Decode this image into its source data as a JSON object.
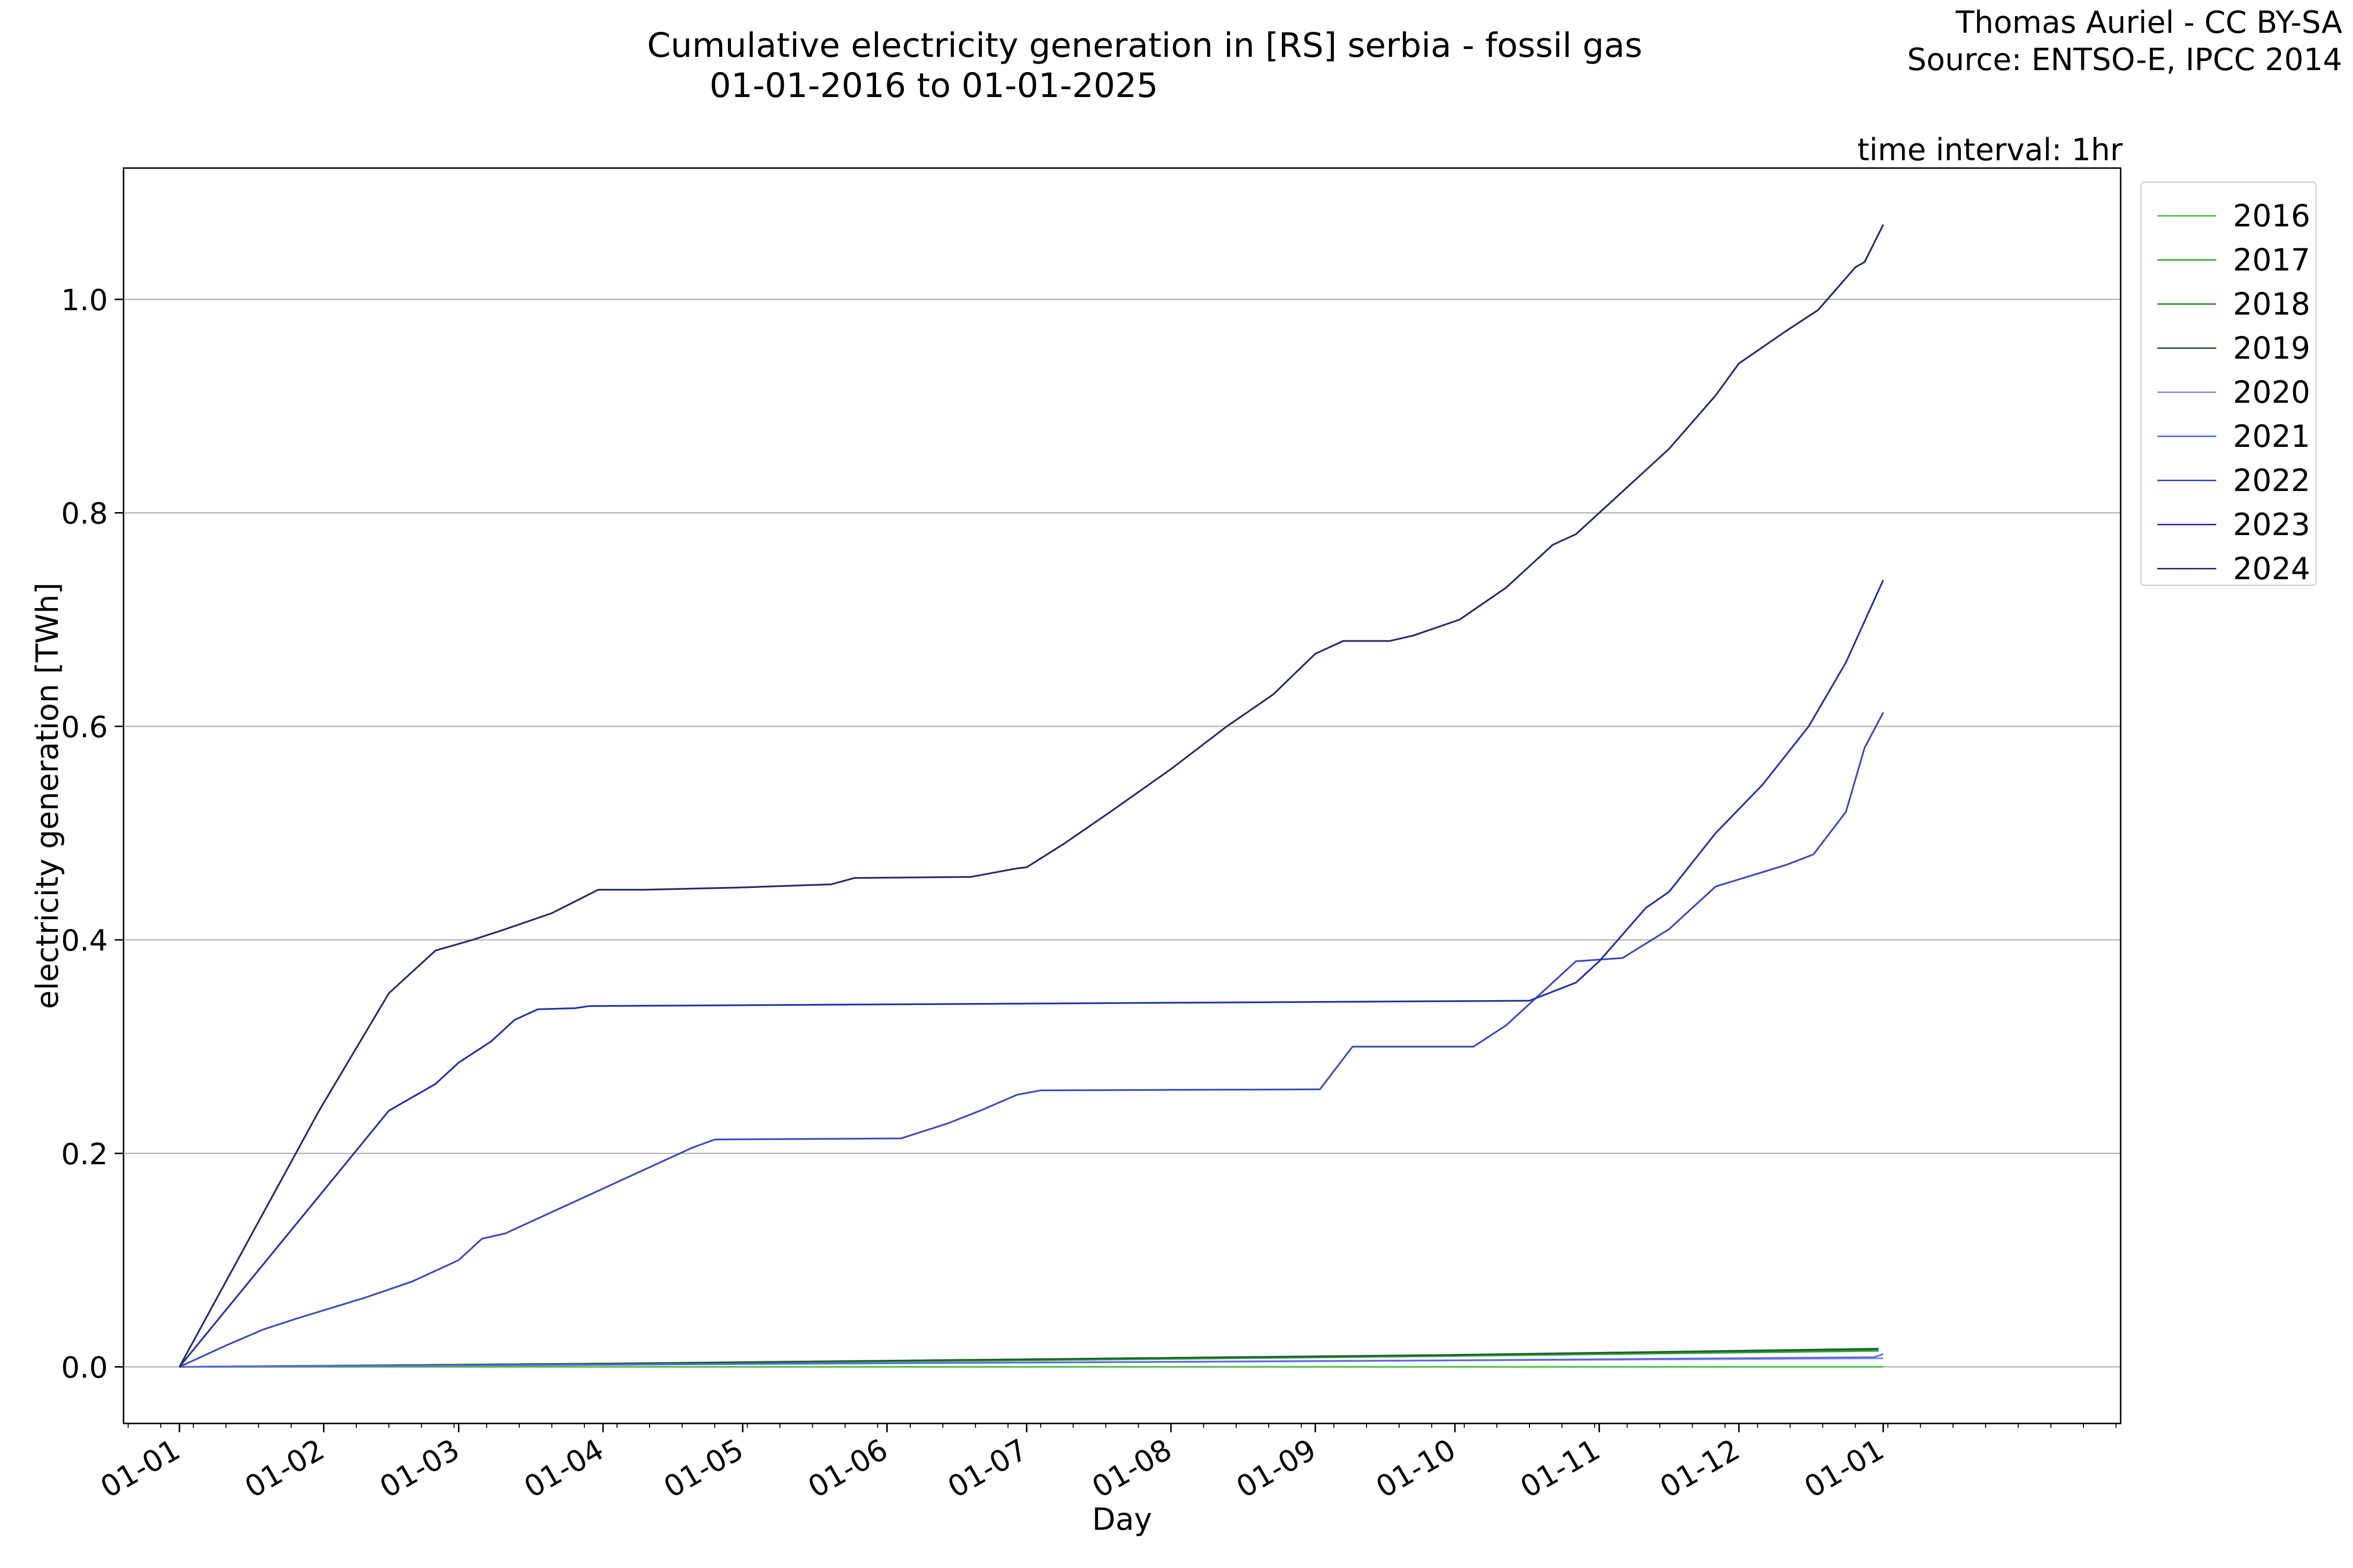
{
  "header": {
    "title_line1": "Cumulative electricity generation in [RS] serbia - fossil gas",
    "title_line2": "01-01-2016 to 01-01-2025",
    "credit_line1": "Thomas Auriel - CC BY-SA",
    "credit_line2": "Source: ENTSO-E, IPCC 2014",
    "interval": "time interval: 1hr"
  },
  "chart_data": {
    "type": "line",
    "title": "Cumulative electricity generation in [RS] serbia - fossil gas",
    "subtitle": "01-01-2016 to 01-01-2025",
    "xlabel": "Day",
    "ylabel": "electricity generation [TWh]",
    "x_unit": "day of year",
    "xlim": [
      -12,
      417
    ],
    "ylim": [
      -0.053,
      1.123
    ],
    "grid": "horizontal",
    "legend_position": "outside-top-right",
    "x_tick_labels": [
      "01-01",
      "01-02",
      "01-03",
      "01-04",
      "01-05",
      "01-06",
      "01-07",
      "01-08",
      "01-09",
      "01-10",
      "01-11",
      "01-12",
      "01-01"
    ],
    "x_tick_positions": [
      0,
      31,
      60,
      91,
      121,
      152,
      182,
      213,
      244,
      274,
      305,
      335,
      366
    ],
    "y_ticks": [
      0.0,
      0.2,
      0.4,
      0.6,
      0.8,
      1.0
    ],
    "y_tick_labels": [
      "0.0",
      "0.2",
      "0.4",
      "0.6",
      "0.8",
      "1.0"
    ],
    "series": [
      {
        "name": "2016",
        "color": "#4ec24e",
        "points": [
          [
            0,
            0
          ],
          [
            366,
            0
          ]
        ]
      },
      {
        "name": "2017",
        "color": "#3aa83a",
        "points": [
          [
            0,
            0
          ],
          [
            90,
            0.003
          ],
          [
            180,
            0.006
          ],
          [
            270,
            0.01
          ],
          [
            365,
            0.015
          ]
        ]
      },
      {
        "name": "2018",
        "color": "#2a8f3a",
        "points": [
          [
            0,
            0
          ],
          [
            90,
            0.003
          ],
          [
            180,
            0.007
          ],
          [
            270,
            0.011
          ],
          [
            365,
            0.016
          ]
        ]
      },
      {
        "name": "2019",
        "color": "#1f5f33",
        "points": [
          [
            0,
            0
          ],
          [
            90,
            0.003
          ],
          [
            180,
            0.007
          ],
          [
            270,
            0.011
          ],
          [
            365,
            0.017
          ]
        ]
      },
      {
        "name": "2020",
        "color": "#8a8fd6",
        "points": [
          [
            0,
            0
          ],
          [
            90,
            0.002
          ],
          [
            180,
            0.004
          ],
          [
            270,
            0.006
          ],
          [
            366,
            0.008
          ]
        ]
      },
      {
        "name": "2021",
        "color": "#5a6ae0",
        "points": [
          [
            0,
            0
          ],
          [
            90,
            0.002
          ],
          [
            180,
            0.004
          ],
          [
            270,
            0.006
          ],
          [
            364,
            0.009
          ],
          [
            366,
            0.012
          ]
        ]
      },
      {
        "name": "2022",
        "color": "#3a4ab8",
        "points": [
          [
            0,
            0
          ],
          [
            10,
            0.02
          ],
          [
            18,
            0.035
          ],
          [
            25,
            0.045
          ],
          [
            40,
            0.065
          ],
          [
            50,
            0.08
          ],
          [
            60,
            0.1
          ],
          [
            65,
            0.12
          ],
          [
            70,
            0.125
          ],
          [
            80,
            0.145
          ],
          [
            90,
            0.165
          ],
          [
            100,
            0.185
          ],
          [
            110,
            0.205
          ],
          [
            115,
            0.213
          ],
          [
            155,
            0.214
          ],
          [
            165,
            0.228
          ],
          [
            172,
            0.24
          ],
          [
            180,
            0.255
          ],
          [
            185,
            0.259
          ],
          [
            245,
            0.26
          ],
          [
            252,
            0.3
          ],
          [
            278,
            0.3
          ],
          [
            285,
            0.32
          ],
          [
            300,
            0.38
          ],
          [
            310,
            0.383
          ],
          [
            320,
            0.41
          ],
          [
            330,
            0.45
          ],
          [
            345,
            0.47
          ],
          [
            351,
            0.48
          ],
          [
            358,
            0.52
          ],
          [
            362,
            0.58
          ],
          [
            366,
            0.613
          ]
        ]
      },
      {
        "name": "2023",
        "color": "#2233a0",
        "points": [
          [
            0,
            0
          ],
          [
            15,
            0.08
          ],
          [
            30,
            0.16
          ],
          [
            45,
            0.24
          ],
          [
            55,
            0.265
          ],
          [
            60,
            0.285
          ],
          [
            67,
            0.305
          ],
          [
            72,
            0.325
          ],
          [
            77,
            0.335
          ],
          [
            85,
            0.336
          ],
          [
            88,
            0.338
          ],
          [
            290,
            0.343
          ],
          [
            300,
            0.36
          ],
          [
            305,
            0.38
          ],
          [
            315,
            0.43
          ],
          [
            320,
            0.445
          ],
          [
            330,
            0.5
          ],
          [
            340,
            0.545
          ],
          [
            350,
            0.6
          ],
          [
            358,
            0.66
          ],
          [
            366,
            0.737
          ]
        ]
      },
      {
        "name": "2024",
        "color": "#232a66",
        "points": [
          [
            0,
            0
          ],
          [
            15,
            0.12
          ],
          [
            30,
            0.24
          ],
          [
            45,
            0.35
          ],
          [
            55,
            0.39
          ],
          [
            63,
            0.4
          ],
          [
            70,
            0.41
          ],
          [
            80,
            0.425
          ],
          [
            90,
            0.447
          ],
          [
            100,
            0.447
          ],
          [
            120,
            0.449
          ],
          [
            140,
            0.452
          ],
          [
            145,
            0.458
          ],
          [
            170,
            0.459
          ],
          [
            180,
            0.467
          ],
          [
            182,
            0.468
          ],
          [
            190,
            0.49
          ],
          [
            200,
            0.52
          ],
          [
            213,
            0.56
          ],
          [
            225,
            0.6
          ],
          [
            235,
            0.63
          ],
          [
            244,
            0.668
          ],
          [
            250,
            0.68
          ],
          [
            260,
            0.68
          ],
          [
            265,
            0.685
          ],
          [
            275,
            0.7
          ],
          [
            285,
            0.73
          ],
          [
            295,
            0.77
          ],
          [
            300,
            0.78
          ],
          [
            310,
            0.82
          ],
          [
            320,
            0.86
          ],
          [
            330,
            0.91
          ],
          [
            335,
            0.94
          ],
          [
            345,
            0.97
          ],
          [
            352,
            0.99
          ],
          [
            360,
            1.03
          ],
          [
            362,
            1.035
          ],
          [
            366,
            1.07
          ]
        ]
      }
    ]
  }
}
